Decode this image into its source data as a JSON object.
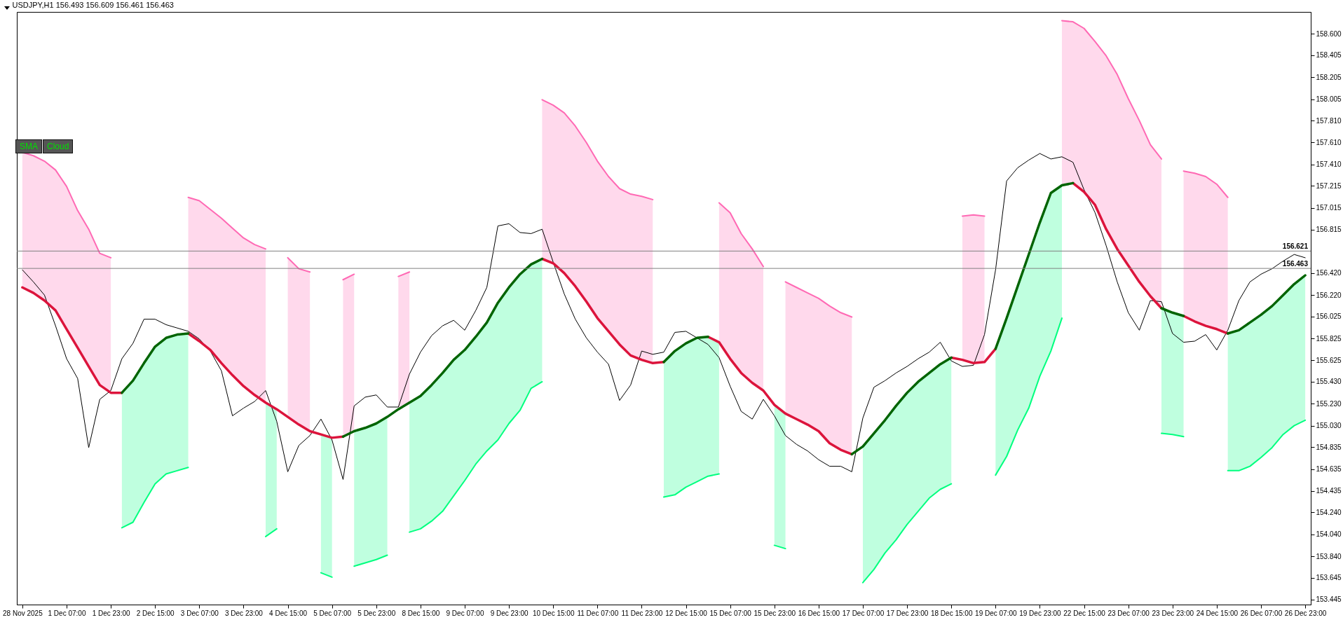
{
  "chart_data": {
    "type": "line",
    "title": "USDJPY,H1  156.493 156.609 156.461 156.463",
    "annotations": [
      "SMA",
      "Cloud"
    ],
    "categories": [
      "28 Nov 2025",
      null,
      null,
      null,
      "1 Dec 07:00",
      null,
      null,
      null,
      "1 Dec 23:00",
      null,
      null,
      null,
      "2 Dec 15:00",
      null,
      null,
      null,
      "3 Dec 07:00",
      null,
      null,
      null,
      "3 Dec 23:00",
      null,
      null,
      null,
      "4 Dec 15:00",
      null,
      null,
      null,
      "5 Dec 07:00",
      null,
      null,
      null,
      "5 Dec 23:00",
      null,
      null,
      null,
      "8 Dec 15:00",
      null,
      null,
      null,
      "9 Dec 07:00",
      null,
      null,
      null,
      "9 Dec 23:00",
      null,
      null,
      null,
      "10 Dec 15:00",
      null,
      null,
      null,
      "11 Dec 07:00",
      null,
      null,
      null,
      "11 Dec 23:00",
      null,
      null,
      null,
      "12 Dec 15:00",
      null,
      null,
      null,
      "15 Dec 07:00",
      null,
      null,
      null,
      "15 Dec 23:00",
      null,
      null,
      null,
      "16 Dec 15:00",
      null,
      null,
      null,
      "17 Dec 07:00",
      null,
      null,
      null,
      "17 Dec 23:00",
      null,
      null,
      null,
      "18 Dec 15:00",
      null,
      null,
      null,
      "19 Dec 07:00",
      null,
      null,
      null,
      "19 Dec 23:00",
      null,
      null,
      null,
      "22 Dec 15:00",
      null,
      null,
      null,
      "23 Dec 07:00",
      null,
      null,
      null,
      "23 Dec 23:00",
      null,
      null,
      null,
      "24 Dec 15:00",
      null,
      null,
      null,
      "26 Dec 07:00",
      null,
      null,
      null,
      "26 Dec 23:00"
    ],
    "ylim": [
      153.4,
      158.8
    ],
    "yticks": [
      {
        "value": 153.445,
        "label": "153.445"
      },
      {
        "value": 153.645,
        "label": "153.645"
      },
      {
        "value": 153.84,
        "label": "153.840"
      },
      {
        "value": 154.04,
        "label": "154.040"
      },
      {
        "value": 154.24,
        "label": "154.240"
      },
      {
        "value": 154.435,
        "label": "154.435"
      },
      {
        "value": 154.635,
        "label": "154.635"
      },
      {
        "value": 154.835,
        "label": "154.835"
      },
      {
        "value": 155.03,
        "label": "155.030"
      },
      {
        "value": 155.23,
        "label": "155.230"
      },
      {
        "value": 155.43,
        "label": "155.430"
      },
      {
        "value": 155.625,
        "label": "155.625"
      },
      {
        "value": 155.825,
        "label": "155.825"
      },
      {
        "value": 156.025,
        "label": "156.025"
      },
      {
        "value": 156.22,
        "label": "156.220"
      },
      {
        "value": 156.42,
        "label": "156.420"
      },
      {
        "value": 156.815,
        "label": "156.815"
      },
      {
        "value": 157.015,
        "label": "157.015"
      },
      {
        "value": 157.215,
        "label": "157.215"
      },
      {
        "value": 157.41,
        "label": "157.410"
      },
      {
        "value": 157.61,
        "label": "157.610"
      },
      {
        "value": 157.81,
        "label": "157.810"
      },
      {
        "value": 158.005,
        "label": "158.005"
      },
      {
        "value": 158.205,
        "label": "158.205"
      },
      {
        "value": 158.405,
        "label": "158.405"
      },
      {
        "value": 158.6,
        "label": "158.600"
      }
    ],
    "ref_lines": [
      {
        "axis": "y",
        "value": 156.621,
        "label": "156.621",
        "color": "#808080"
      },
      {
        "axis": "y",
        "value": 156.463,
        "label": "156.463",
        "color": "#808080"
      }
    ],
    "series": [
      {
        "type": "line",
        "color": "#ff69b4",
        "upper": [
          157.52,
          157.49,
          157.44,
          157.36,
          157.21,
          156.99,
          156.82,
          156.6,
          156.56,
          null,
          null,
          null,
          null,
          null,
          null,
          157.11,
          157.08,
          157.0,
          156.92,
          156.83,
          156.74,
          156.68,
          156.64,
          null,
          156.56,
          156.46,
          156.43,
          null,
          null,
          156.36,
          156.41,
          null,
          null,
          null,
          156.39,
          156.43,
          null,
          null,
          null,
          null,
          null,
          null,
          null,
          null,
          null,
          null,
          null,
          158.0,
          157.95,
          157.88,
          157.76,
          157.61,
          157.44,
          157.3,
          157.19,
          157.14,
          157.12,
          157.09,
          null,
          null,
          null,
          null,
          null,
          157.06,
          156.97,
          156.78,
          156.64,
          156.48,
          null,
          156.34,
          156.29,
          156.24,
          156.19,
          156.12,
          156.06,
          156.02,
          null,
          null,
          null,
          null,
          null,
          null,
          null,
          null,
          null,
          156.94,
          156.95,
          156.94,
          null,
          null,
          null,
          null,
          null,
          null,
          158.72,
          158.71,
          158.65,
          158.53,
          158.4,
          158.23,
          158.01,
          157.81,
          157.59,
          157.46,
          null,
          157.35,
          157.33,
          157.3,
          157.23,
          157.11,
          null,
          null,
          null,
          null,
          null,
          null,
          null
        ],
        "values": [
          157.52,
          157.49,
          157.44,
          157.36,
          157.21,
          156.99,
          156.82,
          156.6,
          156.56,
          null,
          null,
          null,
          null,
          null,
          null,
          157.11,
          157.08,
          157.0,
          156.92,
          156.83,
          156.74,
          156.68,
          156.64,
          null,
          156.56,
          156.46,
          156.43,
          null,
          null,
          156.36,
          156.41,
          null,
          null,
          null,
          156.39,
          156.43,
          null,
          null,
          null,
          null,
          null,
          null,
          null,
          null,
          null,
          null,
          null,
          158.0,
          157.95,
          157.88,
          157.76,
          157.61,
          157.44,
          157.3,
          157.19,
          157.14,
          157.12,
          157.09,
          null,
          null,
          null,
          null,
          null,
          157.06,
          156.97,
          156.78,
          156.64,
          156.48,
          null,
          156.34,
          156.29,
          156.24,
          156.19,
          156.12,
          156.06,
          156.02,
          null,
          null,
          null,
          null,
          null,
          null,
          null,
          null,
          null,
          156.94,
          156.95,
          156.94,
          null,
          null,
          null,
          null,
          null,
          null,
          158.72,
          158.71,
          158.65,
          158.53,
          158.4,
          158.23,
          158.01,
          157.81,
          157.59,
          157.46,
          null,
          157.35,
          157.33,
          157.3,
          157.23,
          157.11,
          null,
          null,
          null,
          null,
          null,
          null,
          null
        ],
        "lower": [
          156.29,
          156.24,
          156.17,
          156.08,
          155.91,
          155.74,
          155.57,
          155.4,
          155.33,
          null,
          null,
          null,
          null,
          null,
          null,
          155.87,
          155.8,
          155.72,
          155.6,
          155.49,
          155.39,
          155.31,
          155.24,
          null,
          155.11,
          155.04,
          154.98,
          null,
          null,
          154.93,
          154.98,
          null,
          null,
          null,
          155.18,
          155.24,
          null,
          null,
          null,
          null,
          null,
          null,
          null,
          null,
          null,
          null,
          null,
          156.55,
          156.51,
          156.42,
          156.3,
          156.16,
          156.01,
          155.89,
          155.77,
          155.67,
          155.63,
          155.6,
          null,
          null,
          null,
          null,
          null,
          155.79,
          155.64,
          155.51,
          155.42,
          155.35,
          null,
          155.14,
          155.09,
          155.04,
          154.98,
          154.87,
          154.81,
          154.77,
          null,
          null,
          null,
          null,
          null,
          null,
          null,
          null,
          null,
          155.63,
          155.6,
          155.61,
          null,
          null,
          null,
          null,
          null,
          null,
          157.22,
          157.24,
          157.16,
          157.04,
          156.82,
          156.64,
          156.49,
          156.34,
          156.21,
          156.1,
          null,
          156.03,
          155.98,
          155.94,
          155.91,
          155.87,
          null,
          null,
          null,
          null,
          null,
          null,
          null
        ]
      },
      {
        "type": "line",
        "color": "#00ff7f",
        "lower": [
          null,
          null,
          null,
          null,
          null,
          null,
          null,
          null,
          null,
          154.1,
          154.15,
          154.33,
          154.5,
          154.59,
          154.62,
          154.65,
          null,
          null,
          null,
          null,
          null,
          null,
          154.02,
          154.09,
          null,
          null,
          null,
          153.69,
          153.65,
          null,
          153.75,
          153.78,
          153.81,
          153.85,
          null,
          154.06,
          154.09,
          154.16,
          154.25,
          154.39,
          154.53,
          154.68,
          154.8,
          154.9,
          155.05,
          155.17,
          155.37,
          155.43,
          null,
          null,
          null,
          null,
          null,
          null,
          null,
          null,
          null,
          null,
          154.38,
          154.4,
          154.47,
          154.52,
          154.57,
          154.59,
          null,
          null,
          null,
          null,
          153.94,
          153.91,
          null,
          null,
          null,
          null,
          null,
          null,
          153.6,
          153.72,
          153.87,
          153.99,
          154.13,
          154.25,
          154.37,
          154.45,
          154.5,
          null,
          null,
          null,
          154.58,
          154.75,
          154.99,
          155.19,
          155.48,
          155.71,
          156.01,
          null,
          null,
          null,
          null,
          null,
          null,
          null,
          null,
          154.96,
          154.95,
          154.93,
          null,
          null,
          null,
          154.62,
          154.62,
          154.66,
          154.74,
          154.83,
          154.95,
          155.03,
          155.08
        ],
        "values": [
          null,
          null,
          null,
          null,
          null,
          null,
          null,
          null,
          null,
          154.1,
          154.15,
          154.33,
          154.5,
          154.59,
          154.62,
          154.65,
          null,
          null,
          null,
          null,
          null,
          null,
          154.02,
          154.09,
          null,
          null,
          null,
          153.69,
          153.65,
          null,
          153.75,
          153.78,
          153.81,
          153.85,
          null,
          154.06,
          154.09,
          154.16,
          154.25,
          154.39,
          154.53,
          154.68,
          154.8,
          154.9,
          155.05,
          155.17,
          155.37,
          155.43,
          null,
          null,
          null,
          null,
          null,
          null,
          null,
          null,
          null,
          null,
          154.38,
          154.4,
          154.47,
          154.52,
          154.57,
          154.59,
          null,
          null,
          null,
          null,
          153.94,
          153.91,
          null,
          null,
          null,
          null,
          null,
          null,
          153.6,
          153.72,
          153.87,
          153.99,
          154.13,
          154.25,
          154.37,
          154.45,
          154.5,
          null,
          null,
          null,
          154.58,
          154.75,
          154.99,
          155.19,
          155.48,
          155.71,
          156.01,
          null,
          null,
          null,
          null,
          null,
          null,
          null,
          null,
          154.96,
          154.95,
          154.93,
          null,
          null,
          null,
          154.62,
          154.62,
          154.66,
          154.74,
          154.83,
          154.95,
          155.03,
          155.08
        ],
        "upper": [
          null,
          null,
          null,
          null,
          null,
          null,
          null,
          null,
          null,
          155.33,
          155.44,
          155.6,
          155.75,
          155.83,
          155.86,
          155.87,
          null,
          null,
          null,
          null,
          null,
          null,
          155.24,
          155.18,
          null,
          null,
          null,
          154.95,
          154.92,
          null,
          154.98,
          155.01,
          155.05,
          155.11,
          null,
          155.24,
          155.3,
          155.4,
          155.51,
          155.63,
          155.72,
          155.84,
          155.97,
          156.15,
          156.29,
          156.41,
          156.5,
          156.55,
          null,
          null,
          null,
          null,
          null,
          null,
          null,
          null,
          null,
          null,
          155.61,
          155.71,
          155.78,
          155.83,
          155.84,
          155.79,
          null,
          null,
          null,
          null,
          155.22,
          155.14,
          null,
          null,
          null,
          null,
          null,
          null,
          154.84,
          154.96,
          155.08,
          155.21,
          155.33,
          155.43,
          155.51,
          155.59,
          155.65,
          null,
          null,
          null,
          155.73,
          156.01,
          156.3,
          156.59,
          156.88,
          157.15,
          157.22,
          null,
          null,
          null,
          null,
          null,
          null,
          null,
          null,
          156.1,
          156.06,
          156.03,
          null,
          null,
          null,
          155.87,
          155.9,
          155.97,
          156.04,
          156.12,
          156.22,
          156.32,
          156.4
        ]
      },
      {
        "type": "line",
        "color": "#000000",
        "values": [
          156.45,
          156.34,
          156.22,
          155.94,
          155.64,
          155.46,
          154.83,
          155.27,
          155.35,
          155.64,
          155.78,
          156.0,
          156.0,
          155.95,
          155.92,
          155.89,
          155.82,
          155.71,
          155.53,
          155.12,
          155.19,
          155.25,
          155.35,
          155.07,
          154.61,
          154.85,
          154.94,
          155.09,
          154.9,
          154.54,
          155.21,
          155.29,
          155.31,
          155.2,
          155.2,
          155.5,
          155.7,
          155.85,
          155.94,
          155.99,
          155.9,
          156.08,
          156.29,
          156.85,
          156.87,
          156.79,
          156.78,
          156.82,
          156.52,
          156.23,
          156.0,
          155.83,
          155.7,
          155.59,
          155.26,
          155.4,
          155.71,
          155.68,
          155.7,
          155.88,
          155.89,
          155.83,
          155.77,
          155.65,
          155.39,
          155.16,
          155.09,
          155.27,
          155.12,
          154.94,
          154.86,
          154.8,
          154.72,
          154.66,
          154.66,
          154.61,
          155.1,
          155.38,
          155.44,
          155.51,
          155.57,
          155.64,
          155.7,
          155.79,
          155.62,
          155.57,
          155.58,
          155.86,
          156.45,
          157.26,
          157.38,
          157.45,
          157.51,
          157.46,
          157.48,
          157.43,
          157.18,
          156.97,
          156.67,
          156.34,
          156.06,
          155.9,
          156.17,
          156.16,
          155.87,
          155.79,
          155.8,
          155.86,
          155.72,
          155.9,
          156.17,
          156.34,
          156.41,
          156.46,
          156.53,
          156.59,
          156.56
        ]
      },
      {
        "type": "line",
        "color": "#dc143c",
        "values": [
          156.29,
          156.24,
          156.17,
          156.08,
          155.91,
          155.74,
          155.57,
          155.4,
          155.33,
          155.33,
          null,
          null,
          null,
          null,
          null,
          155.87,
          155.8,
          155.72,
          155.6,
          155.49,
          155.39,
          155.31,
          155.24,
          155.18,
          155.11,
          155.04,
          154.98,
          154.95,
          154.92,
          154.93,
          null,
          null,
          null,
          null,
          null,
          null,
          null,
          null,
          null,
          null,
          null,
          null,
          null,
          null,
          null,
          null,
          null,
          156.55,
          156.51,
          156.42,
          156.3,
          156.16,
          156.01,
          155.89,
          155.77,
          155.67,
          155.63,
          155.6,
          155.61,
          null,
          null,
          null,
          155.84,
          155.79,
          155.64,
          155.51,
          155.42,
          155.35,
          155.22,
          155.14,
          155.09,
          155.04,
          154.98,
          154.87,
          154.81,
          154.77,
          null,
          null,
          null,
          null,
          null,
          null,
          null,
          null,
          155.65,
          155.63,
          155.6,
          155.61,
          155.73,
          null,
          null,
          null,
          null,
          null,
          null,
          157.24,
          157.16,
          157.04,
          156.82,
          156.64,
          156.49,
          156.34,
          156.21,
          156.1,
          null,
          156.03,
          155.98,
          155.94,
          155.91,
          155.87,
          null,
          null,
          null,
          null,
          null,
          null,
          null
        ]
      },
      {
        "type": "line",
        "color": "#006400",
        "values": [
          null,
          null,
          null,
          null,
          null,
          null,
          null,
          null,
          null,
          155.33,
          155.44,
          155.6,
          155.75,
          155.83,
          155.86,
          155.87,
          null,
          null,
          null,
          null,
          null,
          null,
          null,
          null,
          null,
          null,
          null,
          null,
          null,
          154.93,
          154.98,
          155.01,
          155.05,
          155.11,
          155.18,
          155.24,
          155.3,
          155.4,
          155.51,
          155.63,
          155.72,
          155.84,
          155.97,
          156.15,
          156.29,
          156.41,
          156.5,
          156.55,
          null,
          null,
          null,
          null,
          null,
          null,
          null,
          null,
          null,
          null,
          155.61,
          155.71,
          155.78,
          155.83,
          155.84,
          null,
          null,
          null,
          null,
          null,
          null,
          null,
          null,
          null,
          null,
          null,
          null,
          154.77,
          154.84,
          154.96,
          155.08,
          155.21,
          155.33,
          155.43,
          155.51,
          155.59,
          155.65,
          null,
          null,
          null,
          155.73,
          156.01,
          156.3,
          156.59,
          156.88,
          157.15,
          157.22,
          157.24,
          null,
          null,
          null,
          null,
          null,
          null,
          null,
          156.1,
          156.06,
          156.03,
          null,
          null,
          null,
          155.87,
          155.9,
          155.97,
          156.04,
          156.12,
          156.22,
          156.32,
          156.4
        ]
      }
    ]
  }
}
